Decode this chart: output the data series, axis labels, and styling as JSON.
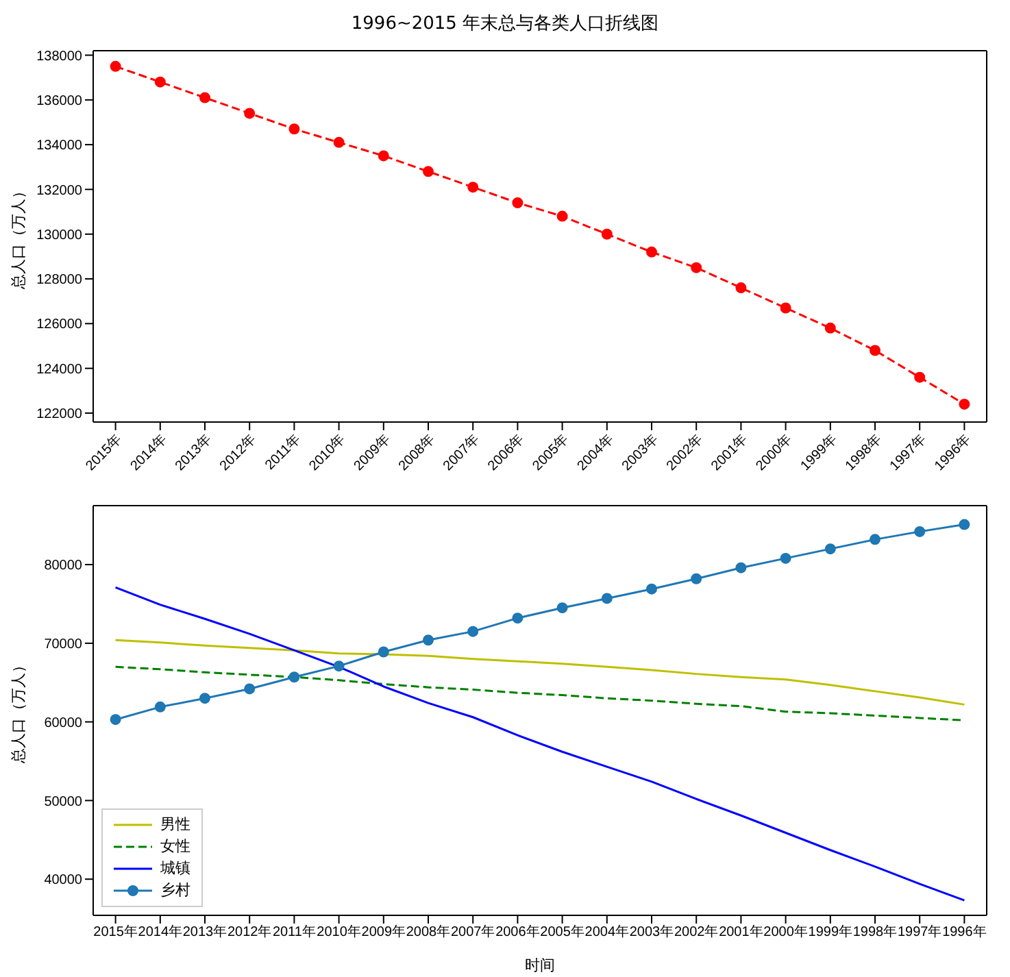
{
  "chart_data": [
    {
      "type": "line",
      "title": "1996~2015 年末总与各类人口折线图",
      "ylabel": "总人口（万人）",
      "categories": [
        "2015年",
        "2014年",
        "2013年",
        "2012年",
        "2011年",
        "2010年",
        "2009年",
        "2008年",
        "2007年",
        "2006年",
        "2005年",
        "2004年",
        "2003年",
        "2002年",
        "2001年",
        "2000年",
        "1999年",
        "1998年",
        "1997年",
        "1996年"
      ],
      "series": [
        {
          "color": "#ff0000",
          "values": [
            137500,
            136800,
            136100,
            135400,
            134700,
            134100,
            133500,
            132800,
            132100,
            131400,
            130800,
            130000,
            129200,
            128500,
            127600,
            126700,
            125800,
            124800,
            123600,
            122400
          ]
        }
      ],
      "marker": "circle",
      "line_style": "dashed",
      "ylim": [
        121600,
        138200
      ],
      "yticks": [
        122000,
        124000,
        126000,
        128000,
        130000,
        132000,
        134000,
        136000,
        138000
      ]
    },
    {
      "type": "line",
      "xlabel": "时间",
      "ylabel": "总人口（万人）",
      "categories": [
        "2015年",
        "2014年",
        "2013年",
        "2012年",
        "2011年",
        "2010年",
        "2009年",
        "2008年",
        "2007年",
        "2006年",
        "2005年",
        "2004年",
        "2003年",
        "2002年",
        "2001年",
        "2000年",
        "1999年",
        "1998年",
        "1997年",
        "1996年"
      ],
      "series": [
        {
          "name": "男性",
          "color": "#bfbf00",
          "line_style": "solid",
          "values": [
            70400,
            70100,
            69700,
            69400,
            69100,
            68700,
            68600,
            68400,
            68000,
            67700,
            67400,
            67000,
            66600,
            66100,
            65700,
            65400,
            64700,
            63900,
            63100,
            62200
          ]
        },
        {
          "name": "女性",
          "color": "#008000",
          "line_style": "dashed",
          "values": [
            67000,
            66700,
            66300,
            66000,
            65700,
            65300,
            64800,
            64400,
            64100,
            63700,
            63400,
            63000,
            62700,
            62300,
            62000,
            61300,
            61100,
            60800,
            60500,
            60200
          ]
        },
        {
          "name": "城镇",
          "color": "#0000ff",
          "line_style": "solid",
          "values": [
            77100,
            74900,
            73100,
            71200,
            69100,
            67000,
            64500,
            62400,
            60600,
            58300,
            56200,
            54300,
            52400,
            50200,
            48100,
            45900,
            43700,
            41600,
            39400,
            37300
          ]
        },
        {
          "name": "乡村",
          "color": "#1f77b4",
          "line_style": "solid",
          "marker": "circle",
          "values": [
            60300,
            61900,
            63000,
            64200,
            65700,
            67100,
            68900,
            70400,
            71500,
            73200,
            74500,
            75700,
            76900,
            78200,
            79600,
            80800,
            82000,
            83200,
            84200,
            85100
          ]
        }
      ],
      "legend": "bottom left",
      "ylim": [
        35400,
        87500
      ],
      "yticks": [
        40000,
        50000,
        60000,
        70000,
        80000
      ]
    }
  ]
}
